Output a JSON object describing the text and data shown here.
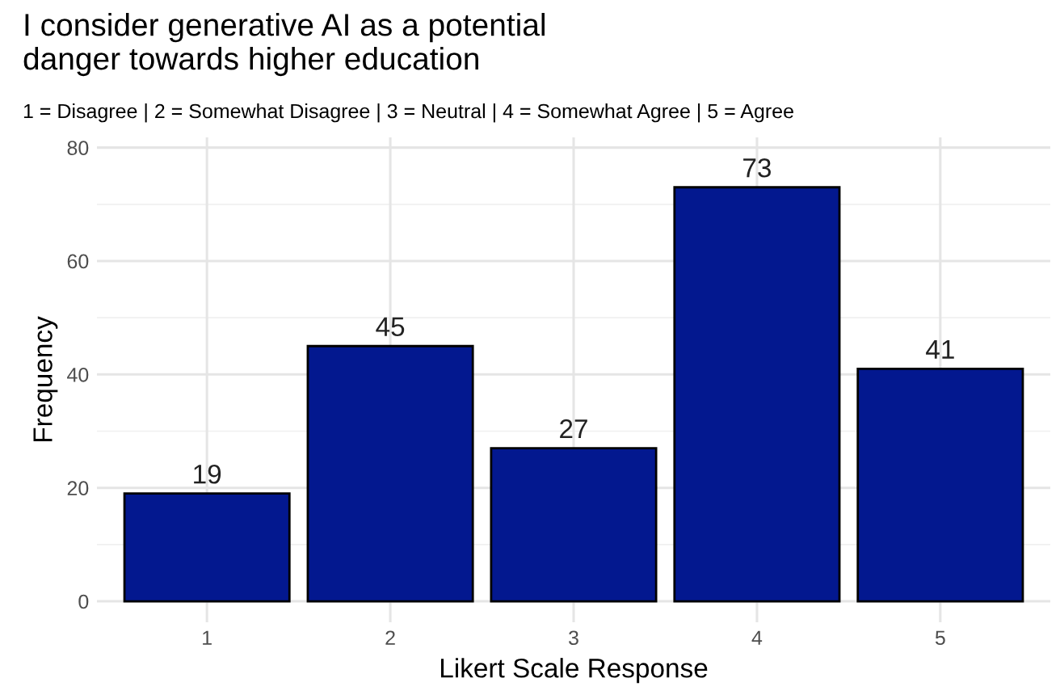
{
  "chart_data": {
    "type": "bar",
    "title": "I consider generative AI as a potential\ndanger towards higher education",
    "subtitle": "1 = Disagree | 2 = Somewhat Disagree | 3 = Neutral | 4 = Somewhat Agree | 5 = Agree",
    "xlabel": "Likert Scale Response",
    "ylabel": "Frequency",
    "categories": [
      "1",
      "2",
      "3",
      "4",
      "5"
    ],
    "values": [
      19,
      45,
      27,
      73,
      41
    ],
    "color": "#03188f",
    "ylim": [
      -3.7,
      81.8
    ],
    "yticks": [
      0,
      20,
      40,
      60,
      80
    ],
    "grid": true,
    "data_labels": true
  }
}
